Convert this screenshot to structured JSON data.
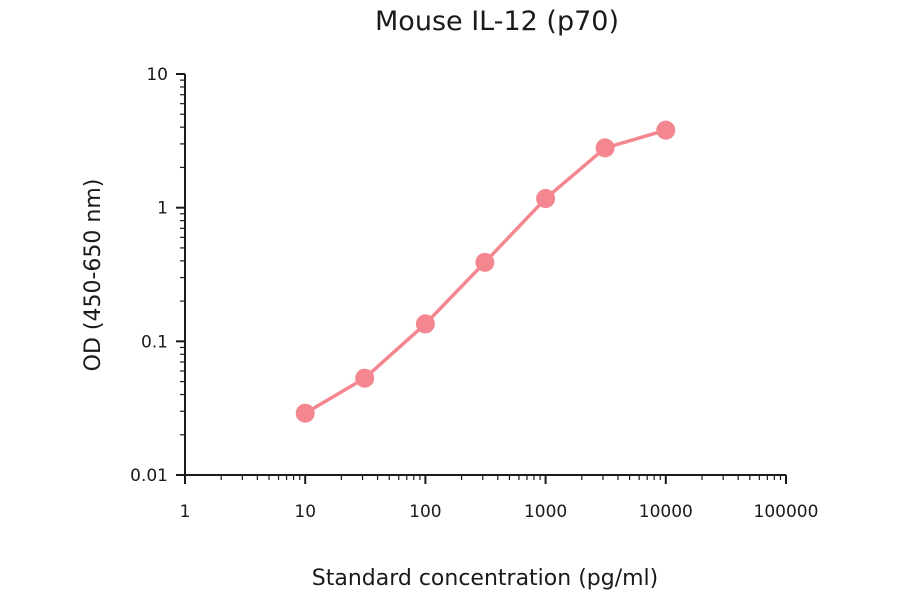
{
  "chart_data": {
    "type": "line",
    "title": "Mouse IL-12 (p70)",
    "xlabel": "Standard concentration (pg/ml)",
    "ylabel": "OD (450-650 nm)",
    "xscale": "log",
    "yscale": "log",
    "xlim": [
      1,
      100000
    ],
    "ylim": [
      0.01,
      10
    ],
    "xticks": [
      "1",
      "10",
      "100",
      "1000",
      "10000",
      "100000"
    ],
    "yticks": [
      "0.01",
      "0.1",
      "1",
      "10"
    ],
    "grid": false,
    "legend": "none",
    "color": "#f4868f",
    "series": [
      {
        "x": [
          10,
          31.25,
          100,
          312.5,
          1000,
          3125,
          10000
        ],
        "y": [
          0.029,
          0.053,
          0.135,
          0.39,
          1.17,
          2.8,
          3.8
        ]
      }
    ]
  }
}
